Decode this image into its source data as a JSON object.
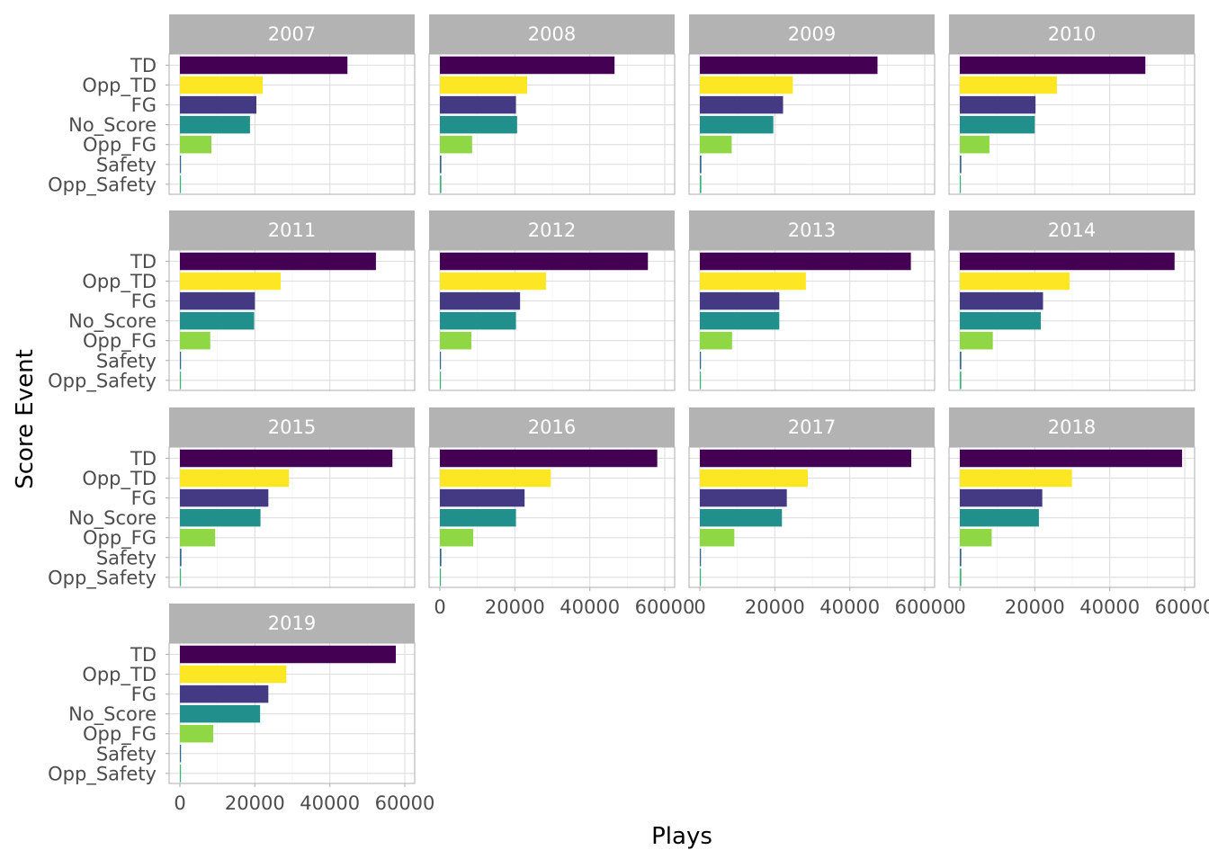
{
  "chart_data": {
    "type": "bar",
    "orientation": "horizontal",
    "xlabel": "Plays",
    "ylabel": "Score Event",
    "xlim": [
      -3000,
      62000
    ],
    "x_ticks": [
      0,
      20000,
      40000,
      60000
    ],
    "x_tick_labels": [
      "0",
      "20000",
      "40000",
      "60000"
    ],
    "grid": true,
    "legend": "none",
    "categories": [
      "TD",
      "Opp_TD",
      "FG",
      "No_Score",
      "Opp_FG",
      "Safety",
      "Opp_Safety"
    ],
    "colors": {
      "TD": "#440154",
      "Opp_TD": "#FDE725",
      "FG": "#443A83",
      "No_Score": "#21908C",
      "Opp_FG": "#8FD744",
      "Safety": "#31688E",
      "Opp_Safety": "#35B779"
    },
    "facets": [
      {
        "label": "2007",
        "values": [
          44700,
          22100,
          20400,
          18700,
          8400,
          250,
          250
        ]
      },
      {
        "label": "2008",
        "values": [
          46600,
          23300,
          20300,
          20600,
          8600,
          400,
          400
        ]
      },
      {
        "label": "2009",
        "values": [
          47400,
          24800,
          22200,
          19600,
          8500,
          400,
          400
        ]
      },
      {
        "label": "2010",
        "values": [
          49500,
          25900,
          20200,
          20000,
          7900,
          400,
          250
        ]
      },
      {
        "label": "2011",
        "values": [
          52300,
          26900,
          20000,
          19800,
          8100,
          300,
          150
        ]
      },
      {
        "label": "2012",
        "values": [
          55500,
          28300,
          21400,
          20300,
          8400,
          150,
          150
        ]
      },
      {
        "label": "2013",
        "values": [
          56300,
          28300,
          21200,
          21200,
          8600,
          300,
          250
        ]
      },
      {
        "label": "2014",
        "values": [
          57300,
          29300,
          22200,
          21600,
          8800,
          400,
          400
        ]
      },
      {
        "label": "2015",
        "values": [
          56700,
          29100,
          23600,
          21500,
          9400,
          400,
          250
        ]
      },
      {
        "label": "2016",
        "values": [
          58000,
          29600,
          22600,
          20300,
          8900,
          400,
          250
        ]
      },
      {
        "label": "2017",
        "values": [
          56400,
          28800,
          23200,
          21900,
          9200,
          300,
          250
        ]
      },
      {
        "label": "2018",
        "values": [
          59300,
          29900,
          22000,
          21100,
          8500,
          400,
          400
        ]
      },
      {
        "label": "2019",
        "values": [
          57600,
          28400,
          23600,
          21400,
          8900,
          300,
          150
        ]
      }
    ]
  }
}
